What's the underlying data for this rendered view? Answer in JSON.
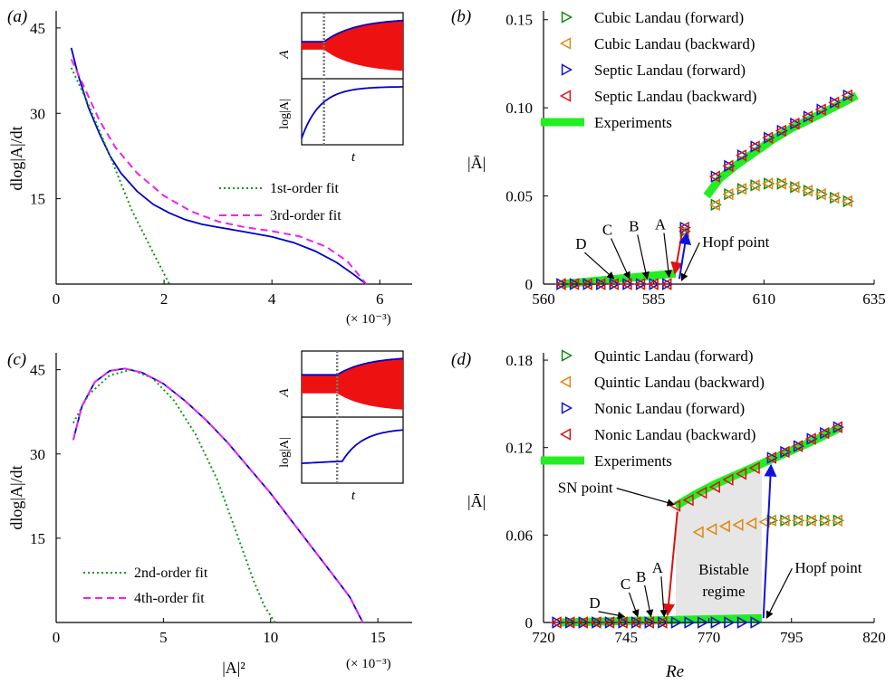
{
  "chart_data": [
    {
      "id": "a",
      "type": "line",
      "panel_label": "(a)",
      "xlabel": "",
      "ylabel": "dlog|A|/dt",
      "xlim": [
        0,
        6.6
      ],
      "ylim": [
        0,
        48
      ],
      "xticks": [
        "0",
        "2",
        "4",
        "6"
      ],
      "xtick_values": [
        0,
        2,
        4,
        6
      ],
      "yticks": [
        "15",
        "30",
        "45"
      ],
      "ytick_values": [
        15,
        30,
        45
      ],
      "x_multiplier": "(× 10⁻³)",
      "legend": [
        "1st-order fit",
        "3rd-order fit"
      ],
      "series": [
        {
          "name": "",
          "color": "#0000cc",
          "style": "solid",
          "x": [
            0.28,
            0.4,
            0.6,
            0.8,
            1.0,
            1.2,
            1.5,
            1.8,
            2.1,
            2.4,
            2.7,
            3.0,
            3.3,
            3.6,
            4.0,
            4.4,
            4.8,
            5.2,
            5.5,
            5.75
          ],
          "y": [
            41.5,
            37.0,
            31.0,
            26.5,
            22.5,
            19.5,
            16.3,
            14.0,
            12.5,
            11.3,
            10.5,
            10.0,
            9.5,
            9.0,
            8.3,
            7.3,
            5.8,
            3.8,
            1.8,
            0
          ]
        },
        {
          "name": "1st-order fit",
          "color": "#119911",
          "style": "dotted",
          "x": [
            0.28,
            0.6,
            1.0,
            1.4,
            1.8,
            2.1
          ],
          "y": [
            38.0,
            31.5,
            22.5,
            13.0,
            5.5,
            0
          ]
        },
        {
          "name": "3rd-order fit",
          "color": "#ee22ee",
          "style": "dashed",
          "x": [
            0.28,
            0.5,
            0.8,
            1.1,
            1.5,
            2.0,
            2.5,
            3.0,
            3.5,
            4.0,
            4.5,
            5.0,
            5.4,
            5.75
          ],
          "y": [
            39.5,
            35.0,
            28.8,
            24.0,
            19.5,
            15.5,
            12.8,
            11.0,
            10.0,
            9.3,
            8.4,
            6.6,
            4.0,
            0
          ]
        }
      ],
      "inset": {
        "ylabels": [
          "A",
          "log|A|"
        ],
        "xlabel": "t",
        "marker": 0.22,
        "mode": "growth"
      }
    },
    {
      "id": "b",
      "type": "scatter",
      "panel_label": "(b)",
      "xlabel": "",
      "ylabel": "|Ā|",
      "xlim": [
        560,
        635
      ],
      "ylim": [
        0,
        0.155
      ],
      "xticks": [
        "560",
        "585",
        "610",
        "635"
      ],
      "xtick_values": [
        560,
        585,
        610,
        635
      ],
      "yticks": [
        "0",
        "0.05",
        "0.10",
        "0.15"
      ],
      "ytick_values": [
        0,
        0.05,
        0.1,
        0.15
      ],
      "legend": [
        "Cubic Landau (forward)",
        "Cubic Landau (backward)",
        "Septic Landau (forward)",
        "Septic Landau (backward)",
        "Experiments"
      ],
      "experiments": {
        "color": "#22ee22",
        "lower": {
          "x": [
            564,
            590
          ],
          "y": [
            0,
            0.006
          ]
        },
        "upper": {
          "x": [
            597,
            600,
            604,
            608,
            612,
            616,
            620,
            624,
            628,
            631
          ],
          "y": [
            0.05,
            0.06,
            0.068,
            0.075,
            0.082,
            0.088,
            0.093,
            0.098,
            0.103,
            0.107
          ]
        }
      },
      "series": [
        {
          "name": "Cubic Landau (forward)",
          "marker": "tri-right",
          "color": "#118811",
          "x": [
            564,
            567,
            570,
            573,
            576,
            579,
            582,
            585,
            588,
            592,
            599,
            602,
            605,
            608,
            611,
            614,
            617,
            620,
            623,
            626,
            629
          ],
          "y": [
            0,
            0,
            0,
            0,
            0,
            0,
            0,
            0,
            0,
            0.03,
            0.045,
            0.051,
            0.054,
            0.056,
            0.057,
            0.057,
            0.055,
            0.053,
            0.051,
            0.049,
            0.047
          ]
        },
        {
          "name": "Cubic Landau (backward)",
          "marker": "tri-left",
          "color": "#dd8811",
          "x": [
            564,
            567,
            570,
            573,
            576,
            579,
            582,
            585,
            588,
            592,
            599,
            602,
            605,
            608,
            611,
            614,
            617,
            620,
            623,
            626,
            629
          ],
          "y": [
            0,
            0,
            0,
            0,
            0,
            0,
            0,
            0,
            0,
            0.03,
            0.045,
            0.051,
            0.054,
            0.056,
            0.057,
            0.057,
            0.055,
            0.053,
            0.051,
            0.049,
            0.047
          ]
        },
        {
          "name": "Septic Landau (forward)",
          "marker": "tri-right",
          "color": "#1111dd",
          "x": [
            564,
            567,
            570,
            573,
            576,
            579,
            582,
            585,
            588,
            592,
            599,
            602,
            605,
            608,
            611,
            614,
            617,
            620,
            623,
            626,
            629
          ],
          "y": [
            0,
            0,
            0,
            0,
            0,
            0,
            0,
            0,
            0,
            0.032,
            0.061,
            0.067,
            0.073,
            0.078,
            0.083,
            0.087,
            0.091,
            0.095,
            0.099,
            0.103,
            0.107
          ]
        },
        {
          "name": "Septic Landau (backward)",
          "marker": "tri-left",
          "color": "#dd1111",
          "x": [
            564,
            567,
            570,
            573,
            576,
            579,
            582,
            585,
            588,
            592,
            599,
            602,
            605,
            608,
            611,
            614,
            617,
            620,
            623,
            626,
            629
          ],
          "y": [
            0,
            0,
            0,
            0,
            0,
            0,
            0,
            0,
            0,
            0.032,
            0.061,
            0.067,
            0.073,
            0.078,
            0.083,
            0.087,
            0.091,
            0.095,
            0.099,
            0.103,
            0.107
          ]
        }
      ],
      "annotations": [
        {
          "text": "A",
          "tx": 586.5,
          "ty": 0.031,
          "ax": 588.5,
          "ay": 0.004
        },
        {
          "text": "B",
          "tx": 580.5,
          "ty": 0.03,
          "ax": 583.5,
          "ay": 0.003
        },
        {
          "text": "C",
          "tx": 574.5,
          "ty": 0.028,
          "ax": 579.5,
          "ay": 0.003
        },
        {
          "text": "D",
          "tx": 568.5,
          "ty": 0.02,
          "ax": 576.0,
          "ay": 0.003
        },
        {
          "text": "Hopf point",
          "tx": 596,
          "ty": 0.021,
          "ax": 591.3,
          "ay": 0.002,
          "anchor": "start"
        }
      ],
      "jumps": [
        {
          "color": "#dd1111",
          "x1": 591.5,
          "y1": 0.03,
          "x2": 589.8,
          "y2": 0.006
        },
        {
          "color": "#1111dd",
          "x1": 590.8,
          "y1": 0.003,
          "x2": 592.5,
          "y2": 0.029
        }
      ]
    },
    {
      "id": "c",
      "type": "line",
      "panel_label": "(c)",
      "xlabel": "|A|²",
      "ylabel": "dlog|A|/dt",
      "xlim": [
        0,
        16.6
      ],
      "ylim": [
        0,
        48
      ],
      "xticks": [
        "0",
        "5",
        "10",
        "15"
      ],
      "xtick_values": [
        0,
        5,
        10,
        15
      ],
      "yticks": [
        "15",
        "30",
        "45"
      ],
      "ytick_values": [
        15,
        30,
        45
      ],
      "x_multiplier": "(× 10⁻³)",
      "legend": [
        "2nd-order fit",
        "4th-order fit"
      ],
      "series": [
        {
          "name": "",
          "color": "#0000cc",
          "style": "solid",
          "x": [
            0.8,
            1.2,
            1.8,
            2.5,
            3.2,
            4.0,
            5.0,
            6.0,
            7.0,
            8.0,
            9.0,
            10.0,
            11.0,
            12.0,
            13.0,
            13.7,
            14.3
          ],
          "y": [
            32.5,
            38.5,
            42.8,
            44.8,
            45.2,
            44.5,
            42.5,
            39.5,
            36.0,
            32.0,
            27.5,
            23.0,
            18.0,
            13.0,
            8.0,
            4.5,
            0
          ]
        },
        {
          "name": "2nd-order fit",
          "color": "#119911",
          "style": "dotted",
          "x": [
            0.8,
            1.5,
            2.5,
            3.5,
            4.5,
            5.5,
            6.5,
            7.5,
            8.5,
            9.2,
            9.7,
            10.2
          ],
          "y": [
            35.5,
            40.5,
            44.0,
            45.0,
            43.5,
            39.5,
            33.5,
            25.5,
            15.0,
            7.5,
            3.0,
            0
          ]
        },
        {
          "name": "4th-order fit",
          "color": "#ee22ee",
          "style": "dashed",
          "x": [
            0.8,
            1.2,
            1.8,
            2.5,
            3.2,
            4.0,
            5.0,
            6.0,
            7.0,
            8.0,
            9.0,
            10.0,
            11.0,
            12.0,
            13.0,
            13.7,
            14.3
          ],
          "y": [
            32.5,
            38.5,
            42.8,
            44.8,
            45.2,
            44.5,
            42.5,
            39.5,
            36.0,
            32.0,
            27.5,
            23.0,
            18.0,
            13.0,
            8.0,
            4.5,
            0
          ]
        }
      ],
      "inset": {
        "ylabels": [
          "A",
          "log|A|"
        ],
        "xlabel": "t",
        "marker": 0.35,
        "mode": "step"
      }
    },
    {
      "id": "d",
      "type": "scatter",
      "panel_label": "(d)",
      "xlabel": "Re",
      "ylabel": "|Ā|",
      "xlim": [
        720,
        820
      ],
      "ylim": [
        0,
        0.185
      ],
      "xticks": [
        "720",
        "745",
        "770",
        "795",
        "820"
      ],
      "xtick_values": [
        720,
        745,
        770,
        795,
        820
      ],
      "yticks": [
        "0",
        "0.06",
        "0.12",
        "0.18"
      ],
      "ytick_values": [
        0,
        0.06,
        0.12,
        0.18
      ],
      "legend": [
        "Quintic Landau (forward)",
        "Quintic Landau (backward)",
        "Nonic Landau (forward)",
        "Nonic Landau (backward)",
        "Experiments"
      ],
      "experiments": {
        "color": "#22ee22",
        "lower": {
          "x": [
            725,
            786
          ],
          "y": [
            0,
            0.003
          ]
        },
        "upper": {
          "x": [
            760,
            766,
            772,
            778,
            784,
            790,
            796,
            802,
            810
          ],
          "y": [
            0.08,
            0.088,
            0.095,
            0.101,
            0.107,
            0.113,
            0.119,
            0.125,
            0.134
          ]
        }
      },
      "bistable": {
        "color": "#e6e6e6",
        "x": [
          760,
          786,
          786,
          760
        ],
        "y": [
          0.08,
          0.107,
          0,
          0
        ]
      },
      "series": [
        {
          "name": "Quintic Landau (forward)",
          "marker": "tri-right",
          "color": "#118811",
          "x": [
            724,
            728,
            732,
            736,
            740,
            744,
            748,
            752,
            756,
            760,
            764,
            768,
            772,
            776,
            780,
            784,
            789,
            793,
            797,
            801,
            805,
            809
          ],
          "y": [
            0,
            0,
            0,
            0,
            0,
            0,
            0,
            0,
            0,
            0,
            0,
            0,
            0,
            0,
            0,
            0,
            0.07,
            0.07,
            0.07,
            0.07,
            0.07,
            0.07
          ]
        },
        {
          "name": "Quintic Landau (backward)",
          "marker": "tri-left",
          "color": "#dd8811",
          "x": [
            724,
            728,
            732,
            736,
            740,
            744,
            748,
            752,
            756,
            767,
            771,
            775,
            779,
            783,
            787,
            789,
            793,
            797,
            801,
            805,
            809
          ],
          "y": [
            0,
            0,
            0,
            0,
            0,
            0,
            0,
            0,
            0,
            0.062,
            0.064,
            0.066,
            0.067,
            0.068,
            0.069,
            0.07,
            0.07,
            0.07,
            0.07,
            0.07,
            0.07
          ]
        },
        {
          "name": "Nonic Landau (forward)",
          "marker": "tri-right",
          "color": "#1111dd",
          "x": [
            724,
            728,
            732,
            736,
            740,
            744,
            748,
            752,
            756,
            760,
            764,
            768,
            772,
            776,
            780,
            784,
            789,
            793,
            797,
            801,
            805,
            809
          ],
          "y": [
            0,
            0,
            0,
            0,
            0,
            0,
            0,
            0,
            0,
            0,
            0,
            0,
            0,
            0,
            0,
            0,
            0.113,
            0.117,
            0.121,
            0.126,
            0.13,
            0.134
          ]
        },
        {
          "name": "Nonic Landau (backward)",
          "marker": "tri-left",
          "color": "#dd1111",
          "x": [
            724,
            728,
            732,
            736,
            740,
            744,
            748,
            752,
            756,
            760,
            764,
            768,
            772,
            776,
            780,
            784,
            789,
            793,
            797,
            801,
            805,
            809
          ],
          "y": [
            0,
            0,
            0,
            0,
            0,
            0,
            0,
            0,
            0,
            0.08,
            0.084,
            0.089,
            0.093,
            0.098,
            0.102,
            0.106,
            0.113,
            0.117,
            0.121,
            0.126,
            0.13,
            0.134
          ]
        }
      ],
      "annotations": [
        {
          "text": "A",
          "tx": 754.5,
          "ty": 0.034,
          "ax": 756.5,
          "ay": 0.004
        },
        {
          "text": "B",
          "tx": 749.5,
          "ty": 0.028,
          "ax": 752.5,
          "ay": 0.004
        },
        {
          "text": "C",
          "tx": 744.8,
          "ty": 0.023,
          "ax": 748.5,
          "ay": 0.004
        },
        {
          "text": "D",
          "tx": 735.5,
          "ty": 0.01,
          "ax": 744.5,
          "ay": 0.004
        },
        {
          "text": "Hopf point",
          "tx": 796,
          "ty": 0.034,
          "ax": 787.5,
          "ay": 0.003,
          "anchor": "start"
        },
        {
          "text": "SN point",
          "tx": 741,
          "ty": 0.089,
          "ax": 759.5,
          "ay": 0.081,
          "anchor": "end"
        }
      ],
      "labels": [
        {
          "text": "Bistable",
          "x": 774.5,
          "y": 0.033
        },
        {
          "text": "regime",
          "x": 774.5,
          "y": 0.018
        }
      ],
      "jumps": [
        {
          "color": "#dd1111",
          "x1": 760.5,
          "y1": 0.076,
          "x2": 757.5,
          "y2": 0.005
        },
        {
          "color": "#1111dd",
          "x1": 786.5,
          "y1": 0.003,
          "x2": 788.8,
          "y2": 0.108
        }
      ]
    }
  ]
}
